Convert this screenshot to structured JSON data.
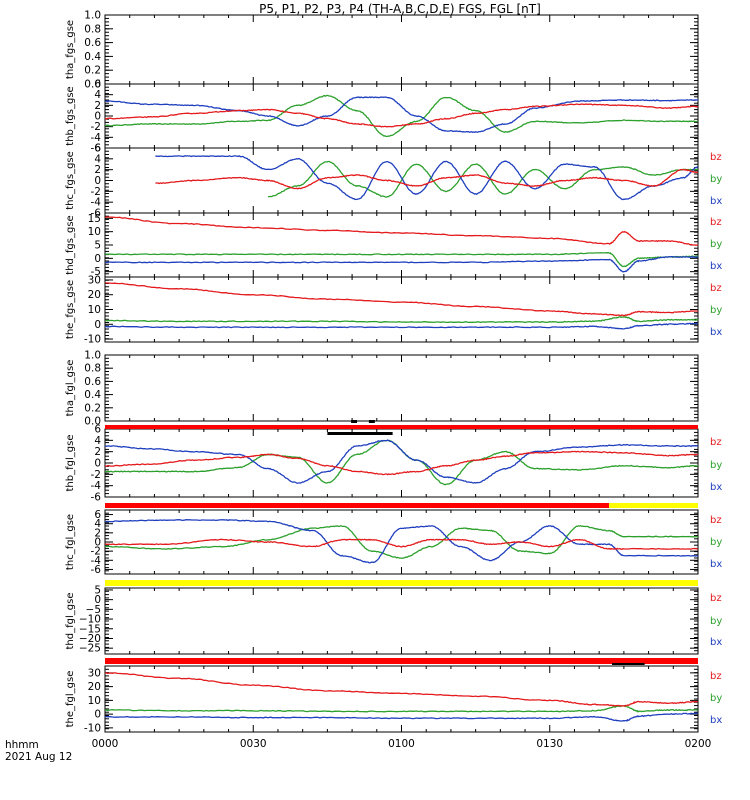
{
  "title": "P5, P1, P2, P3, P4 (TH-A,B,C,D,E) FGS, FGL [nT]",
  "time_axis": {
    "label_line1": "hhmm",
    "label_line2": "2021 Aug 12",
    "ticks": [
      "0000",
      "0030",
      "0100",
      "0130",
      "0200"
    ]
  },
  "legend": {
    "labels": [
      "bz",
      "by",
      "bx"
    ],
    "colors": {
      "bz": "#e41a1c",
      "by": "#2ca02c",
      "bx": "#1f3fbf"
    }
  },
  "bar_colors": {
    "red": "#ff0000",
    "yellow": "#ffff00",
    "black": "#000000"
  },
  "chart_data": [
    {
      "type": "line",
      "ylabel": "tha_fgs_gse",
      "ylim": [
        0,
        1
      ],
      "yticks": [
        "1.0",
        "0.8",
        "0.6",
        "0.4",
        "0.2",
        "0.0"
      ],
      "legend": false,
      "series": []
    },
    {
      "type": "line",
      "ylabel": "thb_fgs_gse",
      "ylim": [
        -6,
        6
      ],
      "yticks": [
        "6",
        "4",
        "2",
        "0",
        "-2",
        "-4",
        "-6"
      ],
      "legend": true,
      "x_hours": [
        0.0,
        0.15,
        0.3,
        0.45,
        0.55,
        0.65,
        0.75,
        0.85,
        0.95,
        1.05,
        1.15,
        1.25,
        1.35,
        1.45,
        1.6,
        1.75,
        1.9,
        2.0
      ],
      "series": [
        {
          "name": "bz",
          "values": [
            -0.5,
            -0.2,
            0.5,
            1.0,
            1.2,
            0.5,
            -0.5,
            -1.5,
            -2.0,
            -1.5,
            -0.5,
            0.5,
            1.2,
            1.8,
            2.2,
            2.0,
            1.5,
            1.8
          ]
        },
        {
          "name": "by",
          "values": [
            -1.8,
            -1.5,
            -1.5,
            -1.0,
            -0.8,
            2.0,
            3.8,
            1.0,
            -3.8,
            -1.0,
            3.5,
            1.0,
            -3.0,
            -1.0,
            -1.3,
            -0.8,
            -1.0,
            -1.0
          ]
        },
        {
          "name": "bx",
          "values": [
            2.8,
            2.2,
            2.0,
            1.0,
            0.0,
            -1.8,
            0.0,
            3.5,
            3.5,
            0.0,
            -2.8,
            -3.0,
            -1.5,
            1.5,
            2.8,
            3.0,
            2.9,
            3.0
          ]
        }
      ]
    },
    {
      "type": "line",
      "ylabel": "thc_fgs_gse",
      "ylim": [
        -6,
        6
      ],
      "yticks": [
        "6",
        "4",
        "2",
        "0",
        "-2",
        "-4",
        "-6"
      ],
      "legend": true,
      "x_hours": [
        0.17,
        0.3,
        0.45,
        0.55,
        0.65,
        0.75,
        0.85,
        0.95,
        1.05,
        1.15,
        1.25,
        1.35,
        1.45,
        1.55,
        1.65,
        1.75,
        1.85,
        1.95,
        2.0
      ],
      "series": [
        {
          "name": "bz",
          "values": [
            -0.5,
            0.0,
            0.5,
            0.0,
            -1.5,
            0.5,
            1.0,
            0.0,
            -1.0,
            0.5,
            1.0,
            -0.5,
            -1.0,
            0.0,
            0.5,
            0.0,
            -1.0,
            2.0,
            1.5
          ]
        },
        {
          "name": "by",
          "values": [
            null,
            null,
            null,
            -3.0,
            -1.0,
            3.5,
            -1.0,
            -3.0,
            3.0,
            -2.0,
            3.0,
            -2.5,
            2.0,
            -1.5,
            2.0,
            2.5,
            1.0,
            2.0,
            2.0
          ]
        },
        {
          "name": "bx",
          "values": [
            4.5,
            4.5,
            4.5,
            2.0,
            4.0,
            -0.5,
            -3.5,
            3.5,
            -2.5,
            3.5,
            -2.5,
            3.5,
            -1.5,
            3.0,
            2.5,
            -3.5,
            -1.0,
            0.5,
            2.5
          ]
        }
      ]
    },
    {
      "type": "line",
      "ylabel": "thd_fgs_gse",
      "ylim": [
        -7,
        17
      ],
      "yticks": [
        "15",
        "10",
        "5",
        "0",
        "-5"
      ],
      "legend": true,
      "x_hours": [
        0.0,
        0.25,
        0.5,
        0.75,
        1.0,
        1.25,
        1.5,
        1.7,
        1.75,
        1.8,
        1.9,
        2.0
      ],
      "series": [
        {
          "name": "bz",
          "values": [
            15.5,
            13.0,
            11.5,
            10.5,
            9.5,
            8.5,
            7.5,
            5.5,
            10.0,
            6.5,
            6.5,
            5.0
          ]
        },
        {
          "name": "by",
          "values": [
            1.5,
            1.5,
            1.5,
            1.5,
            1.5,
            1.5,
            1.5,
            2.0,
            -3.0,
            0.0,
            0.5,
            0.8
          ]
        },
        {
          "name": "bx",
          "values": [
            -1.5,
            -1.5,
            -1.5,
            -1.5,
            -1.5,
            -1.5,
            -1.0,
            -0.5,
            -5.0,
            -1.0,
            0.5,
            0.5
          ]
        }
      ]
    },
    {
      "type": "line",
      "ylabel": "the_fgs_gse",
      "ylim": [
        -12,
        32
      ],
      "yticks": [
        "30",
        "20",
        "10",
        "0",
        "-10"
      ],
      "legend": true,
      "x_hours": [
        0.0,
        0.25,
        0.5,
        0.75,
        1.0,
        1.25,
        1.5,
        1.65,
        1.75,
        1.8,
        1.9,
        2.0
      ],
      "series": [
        {
          "name": "bz",
          "values": [
            28.0,
            24.0,
            20.0,
            17.0,
            15.0,
            12.0,
            9.0,
            7.0,
            6.0,
            8.5,
            8.0,
            9.0
          ]
        },
        {
          "name": "by",
          "values": [
            2.5,
            2.0,
            2.0,
            2.0,
            1.5,
            1.5,
            1.5,
            2.0,
            5.0,
            2.0,
            3.0,
            3.0
          ]
        },
        {
          "name": "bx",
          "values": [
            -1.5,
            -2.0,
            -2.0,
            -2.0,
            -2.0,
            -2.0,
            -2.0,
            -1.5,
            -3.0,
            -1.0,
            0.0,
            0.5
          ]
        }
      ]
    },
    {
      "type": "line",
      "ylabel": "tha_fgl_gse",
      "ylim": [
        0,
        1
      ],
      "yticks": [
        "1.0",
        "0.8",
        "0.6",
        "0.4",
        "0.2",
        "0.0"
      ],
      "legend": false,
      "series": []
    },
    {
      "type": "line",
      "ylabel": "thb_fgl_gse",
      "ylim": [
        -6,
        6
      ],
      "yticks": [
        "6",
        "4",
        "2",
        "0",
        "-2",
        "-4",
        "-6"
      ],
      "legend": true,
      "x_hours": [
        0.0,
        0.15,
        0.3,
        0.45,
        0.55,
        0.65,
        0.75,
        0.85,
        0.95,
        1.05,
        1.15,
        1.25,
        1.35,
        1.45,
        1.6,
        1.75,
        1.9,
        2.0
      ],
      "series": [
        {
          "name": "bz",
          "values": [
            -0.5,
            -0.2,
            0.5,
            1.0,
            1.5,
            0.8,
            -0.5,
            -1.5,
            -2.0,
            -1.5,
            -0.5,
            0.5,
            1.2,
            1.8,
            2.0,
            1.8,
            1.3,
            1.5
          ]
        },
        {
          "name": "by",
          "values": [
            -1.5,
            -1.5,
            -1.5,
            -0.8,
            1.5,
            1.0,
            -3.5,
            1.5,
            4.0,
            0.5,
            -3.8,
            0.5,
            2.0,
            -1.0,
            -1.2,
            -0.5,
            -0.8,
            -0.5
          ]
        },
        {
          "name": "bx",
          "values": [
            3.0,
            2.5,
            2.0,
            1.5,
            -1.0,
            -3.5,
            -1.5,
            3.0,
            4.0,
            0.5,
            -2.5,
            -3.5,
            -1.0,
            2.0,
            2.8,
            3.2,
            3.0,
            3.0
          ]
        }
      ]
    },
    {
      "type": "line",
      "ylabel": "thc_fgl_gse",
      "ylim": [
        -7,
        7
      ],
      "yticks": [
        "6",
        "4",
        "2",
        "0",
        "-2",
        "-4",
        "-6"
      ],
      "legend": true,
      "x_hours": [
        0.0,
        0.2,
        0.4,
        0.55,
        0.7,
        0.8,
        0.9,
        1.0,
        1.1,
        1.2,
        1.3,
        1.4,
        1.5,
        1.6,
        1.7,
        1.75,
        2.0
      ],
      "series": [
        {
          "name": "bz",
          "values": [
            -0.5,
            -0.5,
            0.5,
            0.0,
            -1.0,
            0.5,
            0.5,
            -1.0,
            0.5,
            0.5,
            -0.5,
            0.0,
            -1.0,
            0.5,
            -1.5,
            -1.5,
            -1.5
          ]
        },
        {
          "name": "by",
          "values": [
            -1.0,
            -1.5,
            -1.0,
            0.5,
            3.0,
            3.5,
            -2.0,
            -3.5,
            -1.0,
            3.0,
            2.5,
            -2.0,
            -2.5,
            3.5,
            2.5,
            1.2,
            1.2
          ]
        },
        {
          "name": "bx",
          "values": [
            4.5,
            4.8,
            4.8,
            4.5,
            2.5,
            -3.0,
            -4.5,
            3.0,
            3.5,
            -1.0,
            -4.0,
            0.0,
            3.5,
            -0.5,
            -0.5,
            -3.0,
            -3.0
          ]
        }
      ]
    },
    {
      "type": "line",
      "ylabel": "thd_fgl_gse",
      "ylim": [
        -28,
        6
      ],
      "yticks": [
        "5",
        "0",
        "−5",
        "−10",
        "−15",
        "−20",
        "−25"
      ],
      "legend": true,
      "series": []
    },
    {
      "type": "line",
      "ylabel": "the_fgl_gse",
      "ylim": [
        -13,
        35
      ],
      "yticks": [
        "30",
        "20",
        "10",
        "0",
        "-10"
      ],
      "legend": true,
      "x_hours": [
        0.0,
        0.25,
        0.5,
        0.75,
        1.0,
        1.25,
        1.5,
        1.65,
        1.75,
        1.8,
        1.9,
        2.0
      ],
      "series": [
        {
          "name": "bz",
          "values": [
            30.0,
            26.0,
            21.0,
            17.0,
            15.0,
            13.0,
            10.0,
            7.0,
            6.0,
            9.0,
            8.0,
            9.0
          ]
        },
        {
          "name": "by",
          "values": [
            3.0,
            2.5,
            2.5,
            2.0,
            2.0,
            2.0,
            2.0,
            2.5,
            6.0,
            2.0,
            3.0,
            3.0
          ]
        },
        {
          "name": "bx",
          "values": [
            -2.0,
            -2.0,
            -2.5,
            -2.5,
            -3.0,
            -3.0,
            -3.0,
            -2.0,
            -5.0,
            -1.5,
            0.0,
            0.5
          ]
        }
      ]
    }
  ]
}
